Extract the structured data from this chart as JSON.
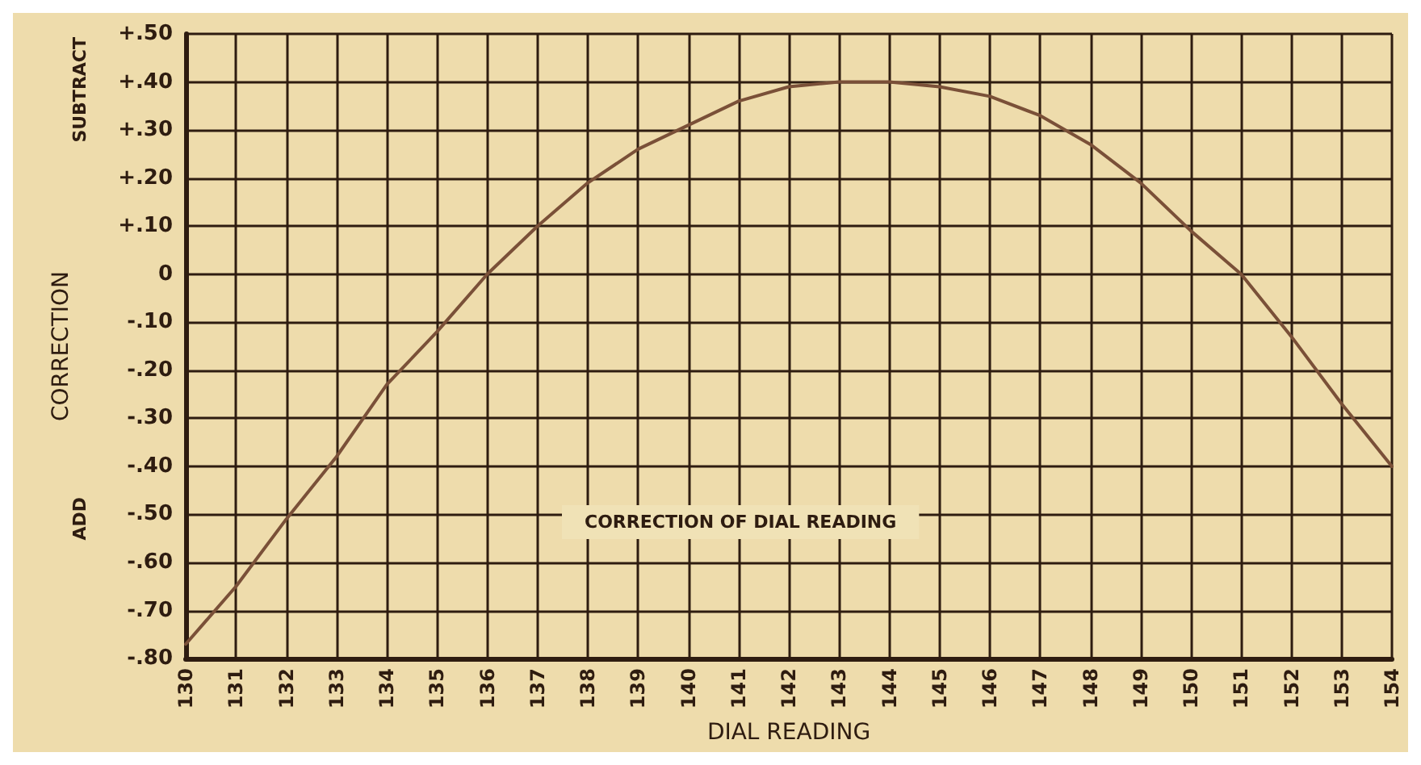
{
  "chart_data": {
    "type": "line",
    "xlabel": "DIAL READING",
    "ylabel": "CORRECTION",
    "annotations": [
      "SUBTRACT",
      "ADD",
      "CORRECTION OF DIAL READING"
    ],
    "x": [
      130,
      131,
      132,
      133,
      134,
      135,
      136,
      137,
      138,
      139,
      140,
      141,
      142,
      143,
      144,
      145,
      146,
      147,
      148,
      149,
      150,
      151,
      152,
      153,
      154
    ],
    "series": [
      {
        "color": "#7a5038",
        "values": [
          -0.77,
          -0.65,
          -0.51,
          -0.38,
          -0.23,
          -0.12,
          0.0,
          0.1,
          0.19,
          0.26,
          0.31,
          0.36,
          0.39,
          0.4,
          0.4,
          0.39,
          0.37,
          0.33,
          0.27,
          0.19,
          0.09,
          0.0,
          -0.13,
          -0.27,
          -0.4
        ]
      }
    ],
    "xlim": [
      130,
      154
    ],
    "xticks": [
      130,
      131,
      132,
      133,
      134,
      135,
      136,
      137,
      138,
      139,
      140,
      141,
      142,
      143,
      144,
      145,
      146,
      147,
      148,
      149,
      150,
      151,
      152,
      153,
      154
    ],
    "ylim": [
      -0.8,
      0.5
    ],
    "yticks": [
      {
        "value": 0.5,
        "label": "+.50"
      },
      {
        "value": 0.4,
        "label": "+.40"
      },
      {
        "value": 0.3,
        "label": "+.30"
      },
      {
        "value": 0.2,
        "label": "+.20"
      },
      {
        "value": 0.1,
        "label": "+.10"
      },
      0,
      {
        "value": -0.1,
        "label": "-.10"
      },
      {
        "value": -0.2,
        "label": "-.20"
      },
      {
        "value": -0.3,
        "label": "-.30"
      },
      {
        "value": -0.4,
        "label": "-.40"
      },
      {
        "value": -0.5,
        "label": "-.50"
      },
      {
        "value": -0.6,
        "label": "-.60"
      },
      {
        "value": -0.7,
        "label": "-.70"
      },
      {
        "value": -0.8,
        "label": "-.80"
      }
    ],
    "grid": true,
    "marker": "none",
    "line_style": "solid"
  }
}
